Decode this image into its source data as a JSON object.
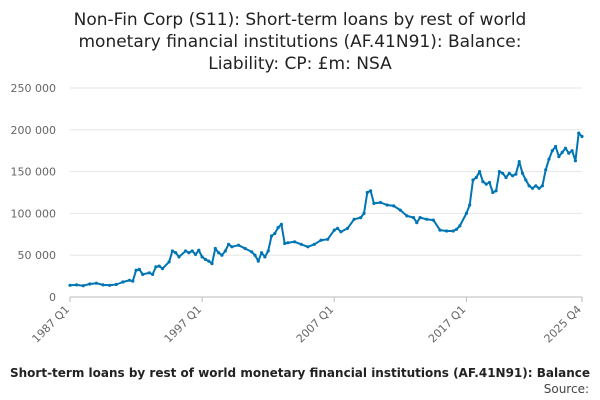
{
  "chart_data": {
    "type": "line",
    "title_lines": [
      "Non-Fin Corp (S11): Short-term loans by rest of world",
      "monetary financial institutions (AF.41N91): Balance:",
      "Liability: CP: £m: NSA"
    ],
    "xlabel": "",
    "ylabel": "",
    "ylim": [
      0,
      250000
    ],
    "y_ticks": [
      0,
      50000,
      100000,
      150000,
      200000,
      250000
    ],
    "y_tick_labels": [
      "0",
      "50 000",
      "100 000",
      "150 000",
      "200 000",
      "250 000"
    ],
    "x_range": [
      1987.0,
      2025.75
    ],
    "x_ticks": [
      1987.0,
      1997.0,
      2007.0,
      2017.0,
      2025.75
    ],
    "x_tick_labels": [
      "1987 Q1",
      "1997 Q1",
      "2007 Q1",
      "2017 Q1",
      "2025 Q4"
    ],
    "grid": true,
    "legend_position": "bottom",
    "legend_label": "Short-term loans by rest of world monetary financial institutions (AF.41N91): Balance",
    "source_label": "Source:",
    "series_color": "#0075b4",
    "series": [
      {
        "name": "Short-term loans by rest of world monetary financial institutions (AF.41N91): Balance",
        "points": [
          [
            1987.0,
            14000
          ],
          [
            1987.5,
            14500
          ],
          [
            1988.0,
            13500
          ],
          [
            1988.5,
            15500
          ],
          [
            1989.0,
            16500
          ],
          [
            1989.5,
            14500
          ],
          [
            1990.0,
            14000
          ],
          [
            1990.5,
            15000
          ],
          [
            1991.0,
            18000
          ],
          [
            1991.5,
            20000
          ],
          [
            1991.75,
            19000
          ],
          [
            1992.0,
            32000
          ],
          [
            1992.25,
            33000
          ],
          [
            1992.5,
            27000
          ],
          [
            1993.0,
            29000
          ],
          [
            1993.25,
            27000
          ],
          [
            1993.5,
            36000
          ],
          [
            1993.75,
            37000
          ],
          [
            1994.0,
            34000
          ],
          [
            1994.5,
            42000
          ],
          [
            1994.75,
            55000
          ],
          [
            1995.0,
            53000
          ],
          [
            1995.25,
            48000
          ],
          [
            1995.75,
            55000
          ],
          [
            1996.0,
            53000
          ],
          [
            1996.25,
            55000
          ],
          [
            1996.5,
            51000
          ],
          [
            1996.75,
            56000
          ],
          [
            1997.0,
            48000
          ],
          [
            1997.25,
            45000
          ],
          [
            1997.5,
            43000
          ],
          [
            1997.75,
            40000
          ],
          [
            1998.0,
            58000
          ],
          [
            1998.25,
            53000
          ],
          [
            1998.5,
            50000
          ],
          [
            1998.75,
            55000
          ],
          [
            1999.0,
            63000
          ],
          [
            1999.25,
            60000
          ],
          [
            1999.75,
            62000
          ],
          [
            2000.25,
            58000
          ],
          [
            2000.75,
            54000
          ],
          [
            2001.0,
            50000
          ],
          [
            2001.25,
            43000
          ],
          [
            2001.5,
            53000
          ],
          [
            2001.75,
            48000
          ],
          [
            2002.0,
            55000
          ],
          [
            2002.25,
            73000
          ],
          [
            2002.5,
            76000
          ],
          [
            2002.75,
            83000
          ],
          [
            2003.0,
            87000
          ],
          [
            2003.25,
            64000
          ],
          [
            2003.5,
            65000
          ],
          [
            2004.0,
            66000
          ],
          [
            2004.5,
            63000
          ],
          [
            2005.0,
            60000
          ],
          [
            2005.5,
            63000
          ],
          [
            2006.0,
            68000
          ],
          [
            2006.5,
            69000
          ],
          [
            2007.0,
            80000
          ],
          [
            2007.25,
            82000
          ],
          [
            2007.5,
            78000
          ],
          [
            2008.0,
            82000
          ],
          [
            2008.5,
            93000
          ],
          [
            2009.0,
            95000
          ],
          [
            2009.25,
            100000
          ],
          [
            2009.5,
            125000
          ],
          [
            2009.75,
            127000
          ],
          [
            2010.0,
            112000
          ],
          [
            2010.5,
            113000
          ],
          [
            2011.0,
            110000
          ],
          [
            2011.5,
            109000
          ],
          [
            2012.0,
            104000
          ],
          [
            2012.5,
            97000
          ],
          [
            2013.0,
            95000
          ],
          [
            2013.25,
            89000
          ],
          [
            2013.5,
            95000
          ],
          [
            2014.0,
            93000
          ],
          [
            2014.5,
            92000
          ],
          [
            2015.0,
            80000
          ],
          [
            2015.5,
            79000
          ],
          [
            2016.0,
            79000
          ],
          [
            2016.25,
            81000
          ],
          [
            2016.5,
            85000
          ],
          [
            2017.0,
            100000
          ],
          [
            2017.25,
            110000
          ],
          [
            2017.5,
            140000
          ],
          [
            2017.75,
            143000
          ],
          [
            2018.0,
            150000
          ],
          [
            2018.25,
            138000
          ],
          [
            2018.5,
            135000
          ],
          [
            2018.75,
            137000
          ],
          [
            2019.0,
            125000
          ],
          [
            2019.25,
            127000
          ],
          [
            2019.5,
            150000
          ],
          [
            2019.75,
            148000
          ],
          [
            2020.0,
            143000
          ],
          [
            2020.25,
            148000
          ],
          [
            2020.5,
            145000
          ],
          [
            2020.75,
            147000
          ],
          [
            2021.0,
            162000
          ],
          [
            2021.25,
            148000
          ],
          [
            2021.5,
            140000
          ],
          [
            2021.75,
            133000
          ],
          [
            2022.0,
            130000
          ],
          [
            2022.25,
            133000
          ],
          [
            2022.5,
            130000
          ],
          [
            2022.75,
            133000
          ],
          [
            2023.0,
            152000
          ],
          [
            2023.25,
            165000
          ],
          [
            2023.5,
            175000
          ],
          [
            2023.75,
            180000
          ],
          [
            2024.0,
            168000
          ],
          [
            2024.25,
            173000
          ],
          [
            2024.5,
            178000
          ],
          [
            2024.75,
            172000
          ],
          [
            2025.0,
            175000
          ],
          [
            2025.25,
            163000
          ],
          [
            2025.5,
            196000
          ],
          [
            2025.75,
            192000
          ]
        ]
      }
    ]
  }
}
